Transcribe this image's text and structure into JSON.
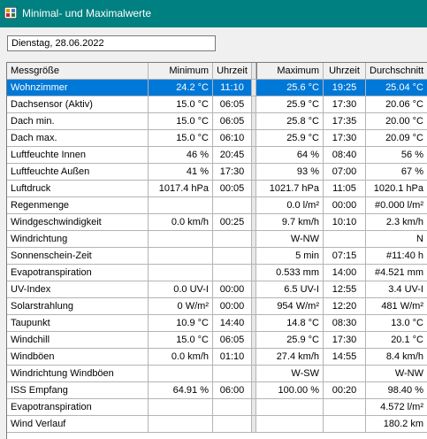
{
  "window": {
    "title": "Minimal- und Maximalwerte",
    "icon": "weather-station-icon",
    "titlebar_color": "#008080"
  },
  "date_field": {
    "value": "Dienstag, 28.06.2022"
  },
  "table": {
    "headers": {
      "name": "Messgröße",
      "min": "Minimum",
      "min_time": "Uhrzeit",
      "max": "Maximum",
      "max_time": "Uhrzeit",
      "avg": "Durchschnitt"
    },
    "selected_color": "#0078d7",
    "rows": [
      {
        "name": "Wohnzimmer",
        "min": "24.2 °C",
        "min_time": "11:10",
        "max": "25.6 °C",
        "max_time": "19:25",
        "avg": "25.04 °C",
        "selected": true
      },
      {
        "name": "Dachsensor (Aktiv)",
        "min": "15.0 °C",
        "min_time": "06:05",
        "max": "25.9 °C",
        "max_time": "17:30",
        "avg": "20.06 °C"
      },
      {
        "name": "Dach min.",
        "min": "15.0 °C",
        "min_time": "06:05",
        "max": "25.8 °C",
        "max_time": "17:35",
        "avg": "20.00 °C"
      },
      {
        "name": "Dach max.",
        "min": "15.0 °C",
        "min_time": "06:10",
        "max": "25.9 °C",
        "max_time": "17:30",
        "avg": "20.09 °C"
      },
      {
        "name": "Luftfeuchte Innen",
        "min": "46 %",
        "min_time": "20:45",
        "max": "64 %",
        "max_time": "08:40",
        "avg": "56 %"
      },
      {
        "name": "Luftfeuchte Außen",
        "min": "41 %",
        "min_time": "17:30",
        "max": "93 %",
        "max_time": "07:00",
        "avg": "67 %"
      },
      {
        "name": "Luftdruck",
        "min": "1017.4 hPa",
        "min_time": "00:05",
        "max": "1021.7 hPa",
        "max_time": "11:05",
        "avg": "1020.1 hPa"
      },
      {
        "name": "Regenmenge",
        "min": "",
        "min_time": "",
        "max": "0.0 l/m²",
        "max_time": "00:00",
        "avg": "#0.000 l/m²"
      },
      {
        "name": "Windgeschwindigkeit",
        "min": "0.0 km/h",
        "min_time": "00:25",
        "max": "9.7 km/h",
        "max_time": "10:10",
        "avg": "2.3 km/h"
      },
      {
        "name": "Windrichtung",
        "min": "",
        "min_time": "",
        "max": "W-NW",
        "max_time": "",
        "avg": "N"
      },
      {
        "name": "Sonnenschein-Zeit",
        "min": "",
        "min_time": "",
        "max": "5 min",
        "max_time": "07:15",
        "avg": "#11:40 h"
      },
      {
        "name": "Evapotranspiration",
        "min": "",
        "min_time": "",
        "max": "0.533 mm",
        "max_time": "14:00",
        "avg": "#4.521 mm"
      },
      {
        "name": "UV-Index",
        "min": "0.0 UV-I",
        "min_time": "00:00",
        "max": "6.5 UV-I",
        "max_time": "12:55",
        "avg": "3.4 UV-I"
      },
      {
        "name": "Solarstrahlung",
        "min": "0 W/m²",
        "min_time": "00:00",
        "max": "954 W/m²",
        "max_time": "12:20",
        "avg": "481 W/m²"
      },
      {
        "name": "Taupunkt",
        "min": "10.9 °C",
        "min_time": "14:40",
        "max": "14.8 °C",
        "max_time": "08:30",
        "avg": "13.0 °C"
      },
      {
        "name": "Windchill",
        "min": "15.0 °C",
        "min_time": "06:05",
        "max": "25.9 °C",
        "max_time": "17:30",
        "avg": "20.1 °C"
      },
      {
        "name": "Windböen",
        "min": "0.0 km/h",
        "min_time": "01:10",
        "max": "27.4 km/h",
        "max_time": "14:55",
        "avg": "8.4 km/h"
      },
      {
        "name": "Windrichtung Windböen",
        "min": "",
        "min_time": "",
        "max": "W-SW",
        "max_time": "",
        "avg": "W-NW"
      },
      {
        "name": "ISS Empfang",
        "min": "64.91 %",
        "min_time": "06:00",
        "max": "100.00 %",
        "max_time": "00:20",
        "avg": "98.40 %"
      },
      {
        "name": "Evapotranspiration",
        "min": "",
        "min_time": "",
        "max": "",
        "max_time": "",
        "avg": "4.572 l/m²"
      },
      {
        "name": "Wind Verlauf",
        "min": "",
        "min_time": "",
        "max": "",
        "max_time": "",
        "avg": "180.2 km"
      }
    ]
  }
}
